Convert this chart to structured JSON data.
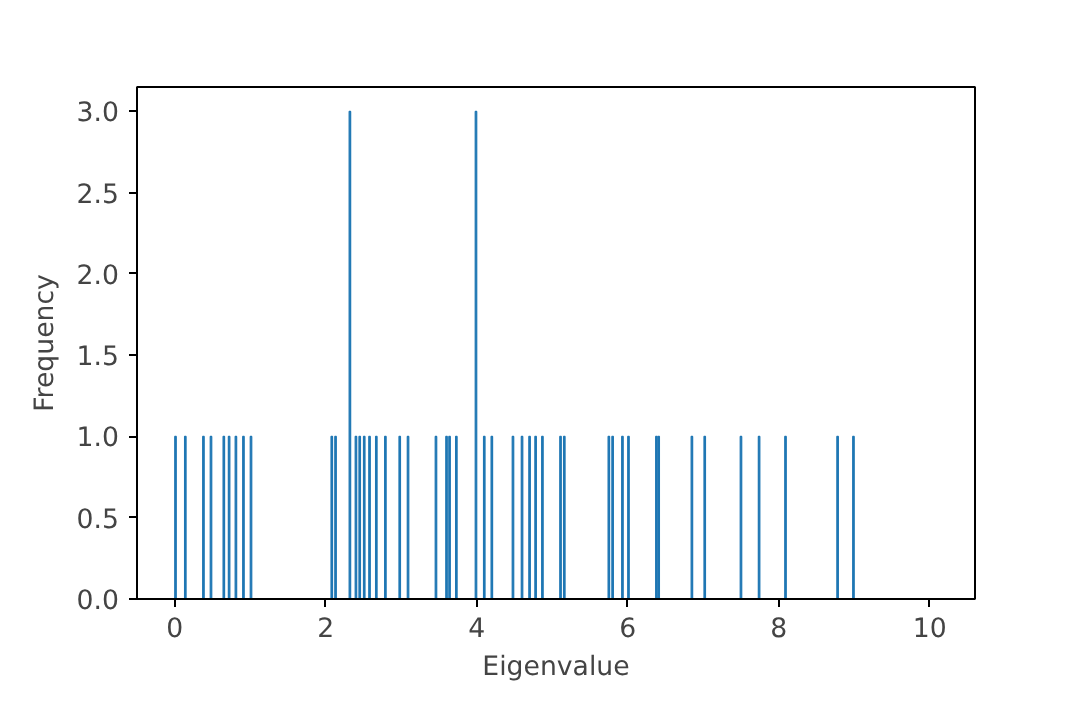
{
  "chart_data": {
    "type": "histogram",
    "xlabel": "Eigenvalue",
    "ylabel": "Frequency",
    "color": "#1f77b4",
    "bins": [
      0,
      0.02,
      0.13,
      0.15,
      0.37,
      0.39,
      0.47,
      0.49,
      0.64,
      0.66,
      0.71,
      0.73,
      0.8,
      0.82,
      0.9,
      0.92,
      1.0,
      1.02,
      2.07,
      2.09,
      2.12,
      2.14,
      2.31,
      2.33,
      2.39,
      2.41,
      2.44,
      2.46,
      2.5,
      2.52,
      2.57,
      2.59,
      2.66,
      2.68,
      2.78,
      2.8,
      2.97,
      2.99,
      3.08,
      3.1,
      3.45,
      3.47,
      3.59,
      3.61,
      3.63,
      3.65,
      3.72,
      3.74,
      3.98,
      4.0,
      4.09,
      4.11,
      4.19,
      4.21,
      4.47,
      4.49,
      4.59,
      4.61,
      4.69,
      4.71,
      4.77,
      4.79,
      4.86,
      4.88,
      5.1,
      5.12,
      5.15,
      5.17,
      5.74,
      5.76,
      5.79,
      5.81,
      5.92,
      5.94,
      6.0,
      6.02,
      6.37,
      6.39,
      6.4,
      6.42,
      6.84,
      6.86,
      7.01,
      7.03,
      7.49,
      7.51,
      7.73,
      7.75,
      8.08,
      8.1,
      8.77,
      8.79,
      8.98,
      9.0
    ],
    "values": [
      1,
      0,
      1,
      0,
      1,
      0,
      1,
      0,
      1,
      0,
      1,
      0,
      1,
      0,
      1,
      0,
      1,
      0,
      1,
      0,
      1,
      0,
      3,
      0,
      1,
      0,
      1,
      0,
      1,
      0,
      1,
      0,
      1,
      0,
      1,
      0,
      1,
      0,
      1,
      0,
      1,
      0,
      1,
      0,
      1,
      0,
      1,
      0,
      3,
      0,
      1,
      0,
      1,
      0,
      1,
      0,
      1,
      0,
      1,
      0,
      1,
      0,
      1,
      0,
      1,
      0,
      1,
      0,
      1,
      0,
      1,
      0,
      1,
      0,
      1,
      0,
      1,
      0,
      1,
      0,
      1,
      0,
      1,
      0,
      1,
      0,
      1,
      0,
      1,
      0,
      1,
      0,
      1
    ],
    "xlim": [
      -0.5,
      10.6
    ],
    "ylim": [
      0,
      3.15
    ],
    "xticks": [
      0,
      2,
      4,
      6,
      8,
      10
    ],
    "yticks": [
      {
        "value": 0,
        "label": "0.0"
      },
      {
        "value": 0.5,
        "label": "0.5"
      },
      {
        "value": 1,
        "label": "1.0"
      },
      {
        "value": 1.5,
        "label": "1.5"
      },
      {
        "value": 2,
        "label": "2.0"
      },
      {
        "value": 2.5,
        "label": "2.5"
      },
      {
        "value": 3,
        "label": "3.0"
      }
    ],
    "grid": false
  }
}
